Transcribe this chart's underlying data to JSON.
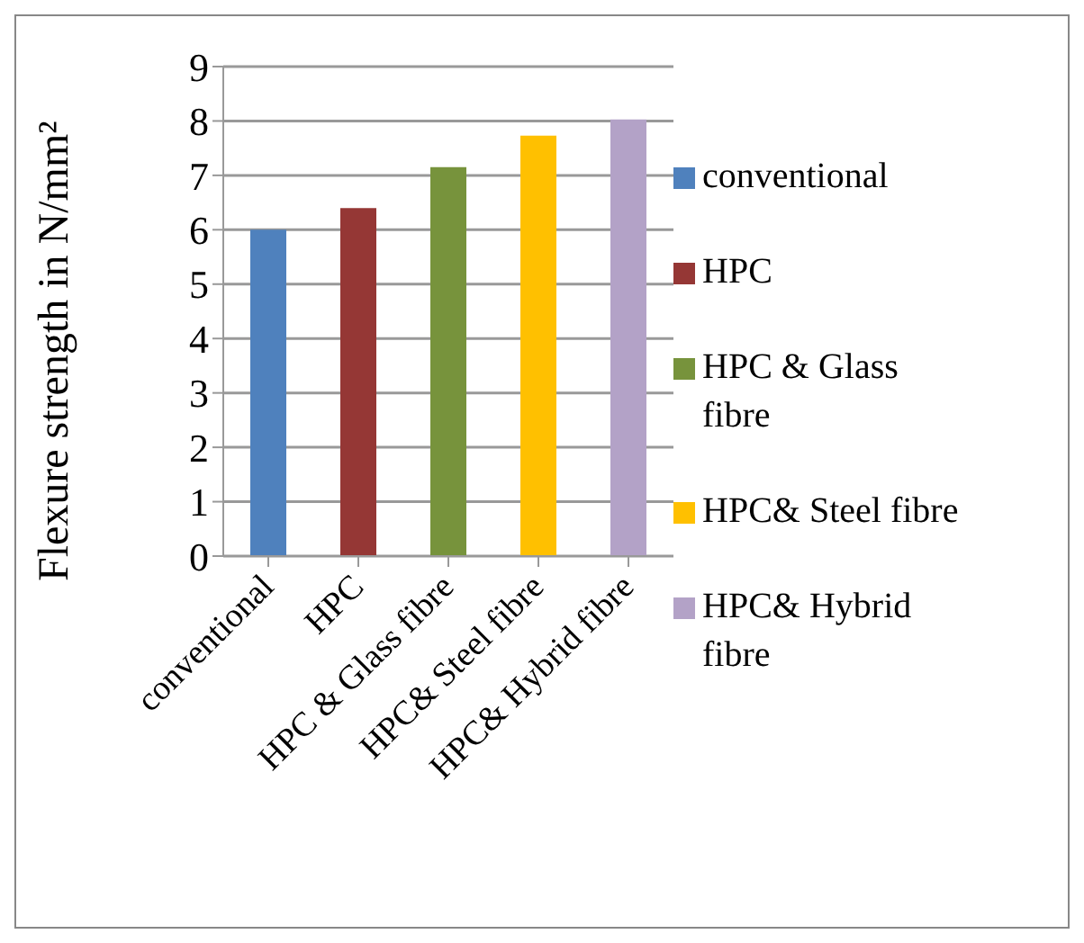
{
  "chart_data": {
    "type": "bar",
    "ylabel": "Flexure strength in N/mm²",
    "categories": [
      "conventional",
      "HPC",
      "HPC & Glass fibre",
      "HPC& Steel fibre",
      "HPC& Hybrid fibre"
    ],
    "series": [
      {
        "name": "conventional",
        "color": "#4f81bd",
        "values": [
          6.0,
          null,
          null,
          null,
          null
        ]
      },
      {
        "name": "HPC",
        "color": "#953735",
        "values": [
          null,
          6.4,
          null,
          null,
          null
        ]
      },
      {
        "name": "HPC & Glass fibre",
        "color": "#77933c",
        "values": [
          null,
          null,
          7.15,
          null,
          null
        ]
      },
      {
        "name": "HPC& Steel fibre",
        "color": "#ffc000",
        "values": [
          null,
          null,
          null,
          7.73,
          null
        ]
      },
      {
        "name": "HPC& Hybrid fibre",
        "color": "#b3a2c7",
        "values": [
          null,
          null,
          null,
          null,
          8.03
        ]
      }
    ],
    "ylim": [
      0,
      9
    ],
    "yticks": [
      0,
      1,
      2,
      3,
      4,
      5,
      6,
      7,
      8,
      9
    ],
    "grid": "y",
    "legend": "right"
  }
}
